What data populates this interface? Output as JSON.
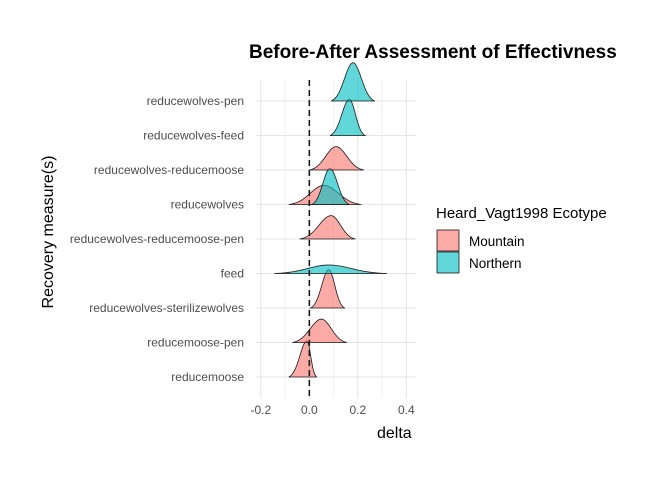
{
  "chart_data": {
    "type": "ridgeline",
    "title": "Before-After Assessment of Effectivness",
    "xlabel": "delta",
    "ylabel": "Recovery measure(s)",
    "xlim": [
      -0.22,
      0.44
    ],
    "x_ticks": [
      -0.2,
      0.0,
      0.2,
      0.4
    ],
    "x_tick_labels": [
      "-0.2",
      "0.0",
      "0.2",
      "0.4"
    ],
    "reference_line_x": 0.0,
    "reference_line_style": "dashed",
    "grid": true,
    "legend": {
      "title": "Heard_Vagt1998 Ecotype",
      "placement": "right",
      "entries": [
        {
          "name": "Mountain",
          "color": "#F8766D"
        },
        {
          "name": "Northern",
          "color": "#00BFC4"
        }
      ]
    },
    "categories": [
      "reducemoose",
      "reducemoose-pen",
      "reducewolves-sterilizewolves",
      "feed",
      "reducewolves-reducemoose-pen",
      "reducewolves",
      "reducewolves-reducemoose",
      "reducewolves-feed",
      "reducewolves-pen"
    ],
    "series": [
      {
        "name": "Mountain",
        "category": "reducemoose",
        "min": -0.085,
        "max": 0.03,
        "mode": -0.01,
        "height": 0.85
      },
      {
        "name": "Mountain",
        "category": "reducemoose-pen",
        "min": -0.07,
        "max": 0.155,
        "mode": 0.05,
        "height": 0.55
      },
      {
        "name": "Mountain",
        "category": "reducewolves-sterilizewolves",
        "min": 0.005,
        "max": 0.145,
        "mode": 0.08,
        "height": 0.9
      },
      {
        "name": "Northern",
        "category": "feed",
        "min": -0.145,
        "max": 0.32,
        "mode": 0.08,
        "height": 0.2
      },
      {
        "name": "Mountain",
        "category": "reducewolves-reducemoose-pen",
        "min": -0.04,
        "max": 0.19,
        "mode": 0.09,
        "height": 0.55
      },
      {
        "name": "Mountain",
        "category": "reducewolves",
        "min": -0.085,
        "max": 0.215,
        "mode": 0.06,
        "height": 0.45
      },
      {
        "name": "Northern",
        "category": "reducewolves",
        "min": 0.01,
        "max": 0.165,
        "mode": 0.085,
        "height": 0.85
      },
      {
        "name": "Mountain",
        "category": "reducewolves-reducemoose",
        "min": 0.0,
        "max": 0.225,
        "mode": 0.11,
        "height": 0.55
      },
      {
        "name": "Northern",
        "category": "reducewolves-feed",
        "min": 0.085,
        "max": 0.23,
        "mode": 0.165,
        "height": 0.85
      },
      {
        "name": "Northern",
        "category": "reducewolves-pen",
        "min": 0.09,
        "max": 0.27,
        "mode": 0.18,
        "height": 0.9
      }
    ]
  }
}
